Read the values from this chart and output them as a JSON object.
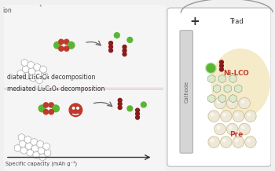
{
  "bg_color": "#f0f0f0",
  "text_top": "diated Li₂C₂O₄ decomposition",
  "text_bot": "mediated Li₂C₂O₄ decomposition",
  "x_axis_label": "Specific capacity (mAh g⁻¹)",
  "right_label_top": "Trad",
  "right_label_cathode": "Cathode",
  "right_label_nilco": "Ni-LCO",
  "right_label_pre": "Pre",
  "plus_sign": "+",
  "green_color": "#5ab534",
  "red_color": "#c0392b",
  "dark_red": "#8b1a1a",
  "gray_hex": "#c8c8c8",
  "arrow_color": "#555555",
  "line_sep_color": "#d08080",
  "cathode_color": "#d8d8d8",
  "battery_bg": "#fdf5e0",
  "white": "#ffffff",
  "panel_bg": "#f5f5f5"
}
